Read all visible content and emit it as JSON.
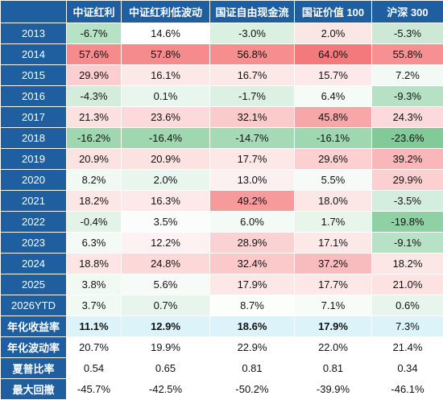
{
  "chart_data": {
    "type": "table",
    "columns": [
      "中证红利",
      "中证红利低波动",
      "国证自由现金流",
      "国证价值 100",
      "沪深 300"
    ],
    "rows": [
      {
        "label": "2013",
        "values": [
          "-6.7%",
          "14.6%",
          "-3.0%",
          "2.0%",
          "-5.3%"
        ],
        "colors": [
          "#b8e2c6",
          "#ffffff",
          "#daf0e1",
          "#fbe6e6",
          "#cde9d6"
        ]
      },
      {
        "label": "2014",
        "values": [
          "57.6%",
          "57.8%",
          "56.8%",
          "64.0%",
          "55.8%"
        ],
        "colors": [
          "#f68b8e",
          "#f68b8e",
          "#f68d8f",
          "#f4797d",
          "#f69093"
        ]
      },
      {
        "label": "2015",
        "values": [
          "29.9%",
          "16.1%",
          "16.7%",
          "15.7%",
          "7.2%"
        ],
        "colors": [
          "#fbcfd0",
          "#fde8e8",
          "#fde8e8",
          "#fde9e9",
          "#f3faf5"
        ]
      },
      {
        "label": "2016",
        "values": [
          "-4.3%",
          "0.1%",
          "-1.7%",
          "6.4%",
          "-9.3%"
        ],
        "colors": [
          "#d3ecdb",
          "#e9f6ed",
          "#dcf0e3",
          "#f5fbf7",
          "#b6e1c4"
        ]
      },
      {
        "label": "2017",
        "values": [
          "21.3%",
          "23.6%",
          "32.1%",
          "45.8%",
          "24.3%"
        ],
        "colors": [
          "#fde0e0",
          "#fcdadb",
          "#fbcacb",
          "#f8a7a9",
          "#fcd9da"
        ]
      },
      {
        "label": "2018",
        "values": [
          "-16.2%",
          "-16.4%",
          "-14.7%",
          "-16.1%",
          "-23.6%"
        ],
        "colors": [
          "#9fd7b1",
          "#9ed7b0",
          "#a6dab7",
          "#9fd7b1",
          "#82cb99"
        ]
      },
      {
        "label": "2019",
        "values": [
          "20.9%",
          "20.9%",
          "17.7%",
          "29.6%",
          "39.2%"
        ],
        "colors": [
          "#fde2e2",
          "#fde2e2",
          "#fde7e7",
          "#fcd0d1",
          "#f9b7b9"
        ]
      },
      {
        "label": "2020",
        "values": [
          "8.2%",
          "2.0%",
          "13.0%",
          "5.5%",
          "29.9%"
        ],
        "colors": [
          "#f1f9f3",
          "#e9f6ed",
          "#fdf0f0",
          "#f6fbf8",
          "#fcd0d1"
        ]
      },
      {
        "label": "2021",
        "values": [
          "18.2%",
          "16.3%",
          "49.2%",
          "18.0%",
          "-3.5%"
        ],
        "colors": [
          "#fde6e6",
          "#fde9e9",
          "#f69a9c",
          "#fde6e6",
          "#d5edde"
        ]
      },
      {
        "label": "2022",
        "values": [
          "-0.4%",
          "3.5%",
          "6.0%",
          "1.7%",
          "-19.8%"
        ],
        "colors": [
          "#e2f3e8",
          "#fafdfb",
          "#f4fbf6",
          "#e7f5eb",
          "#8fd0a4"
        ]
      },
      {
        "label": "2023",
        "values": [
          "6.3%",
          "12.2%",
          "28.9%",
          "17.1%",
          "-9.1%"
        ],
        "colors": [
          "#f4fbf6",
          "#fdf1f1",
          "#fbd2d3",
          "#fde8e8",
          "#b8e2c6"
        ]
      },
      {
        "label": "2024",
        "values": [
          "18.8%",
          "24.8%",
          "32.4%",
          "37.2%",
          "18.2%"
        ],
        "colors": [
          "#fde5e5",
          "#fcd8d9",
          "#fbc9ca",
          "#f9bcbe",
          "#fde6e6"
        ]
      },
      {
        "label": "2025",
        "values": [
          "3.8%",
          "5.6%",
          "17.9%",
          "17.7%",
          "21.0%"
        ],
        "colors": [
          "#f1f9f3",
          "#f6fbf8",
          "#fde7e7",
          "#fde7e7",
          "#fde2e2"
        ]
      },
      {
        "label": "2026YTD",
        "values": [
          "3.7%",
          "0.7%",
          "8.7%",
          "7.1%",
          "0.6%"
        ],
        "colors": [
          "#f1f9f3",
          "#e8f5ec",
          "#fcfefc",
          "#f8fcf9",
          "#e8f5ec"
        ]
      },
      {
        "label": "年化收益率",
        "values": [
          "11.1%",
          "12.9%",
          "18.6%",
          "17.9%",
          "7.3%"
        ],
        "colors": [
          "#ddf3fa",
          "#ddf3fa",
          "#ddf3fa",
          "#ddf3fa",
          "#ddf3fa"
        ],
        "bold": [
          true,
          true,
          true,
          true,
          false
        ],
        "metric": true
      },
      {
        "label": "年化波动率",
        "values": [
          "20.7%",
          "19.9%",
          "22.9%",
          "22.0%",
          "21.4%"
        ],
        "colors": [
          "#ffffff",
          "#ffffff",
          "#ffffff",
          "#ffffff",
          "#ffffff"
        ],
        "metric": true
      },
      {
        "label": "夏普比率",
        "values": [
          "0.54",
          "0.65",
          "0.81",
          "0.81",
          "0.34"
        ],
        "colors": [
          "#ffffff",
          "#ffffff",
          "#ffffff",
          "#ffffff",
          "#ffffff"
        ],
        "metric": true
      },
      {
        "label": "最大回撤",
        "values": [
          "-45.7%",
          "-42.5%",
          "-50.2%",
          "-39.9%",
          "-46.1%"
        ],
        "colors": [
          "#ffffff",
          "#ffffff",
          "#ffffff",
          "#ffffff",
          "#ffffff"
        ],
        "metric": true
      }
    ]
  }
}
